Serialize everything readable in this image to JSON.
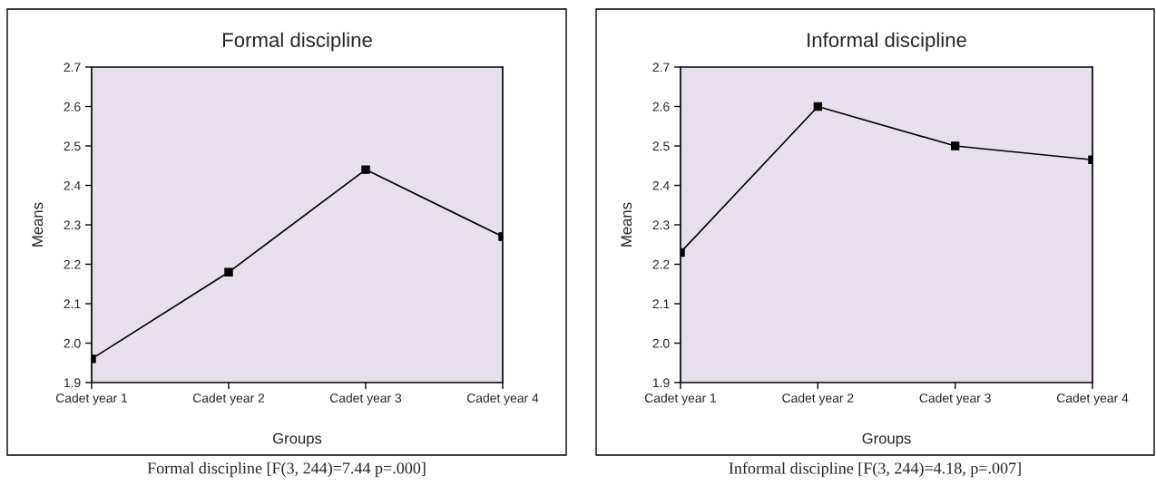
{
  "chart_data": [
    {
      "type": "line",
      "title": "Formal discipline",
      "xlabel": "Groups",
      "ylabel": "Means",
      "categories": [
        "Cadet year 1",
        "Cadet year 2",
        "Cadet year 3",
        "Cadet year 4"
      ],
      "series": [
        {
          "color": "#000000",
          "values": [
            1.96,
            2.18,
            2.44,
            2.27
          ]
        }
      ],
      "ylim": [
        1.9,
        2.7
      ],
      "yticks": [
        1.9,
        {
          "value": 2.0,
          "label": "2.0"
        },
        2.1,
        2.2,
        2.3,
        2.4,
        2.5,
        2.6,
        2.7
      ],
      "marker": "square",
      "line_style": "solid",
      "annotations": [
        "Formal discipline [F(3, 244)=7.44 p=.000]"
      ]
    },
    {
      "type": "line",
      "title": "Informal discipline",
      "xlabel": "Groups",
      "ylabel": "Means",
      "categories": [
        "Cadet year 1",
        "Cadet year 2",
        "Cadet year 3",
        "Cadet year 4"
      ],
      "series": [
        {
          "color": "#000000",
          "values": [
            2.23,
            2.6,
            2.5,
            2.465
          ]
        }
      ],
      "ylim": [
        1.9,
        2.7
      ],
      "yticks": [
        1.9,
        {
          "value": 2.0,
          "label": "2.0"
        },
        2.1,
        2.2,
        2.3,
        2.4,
        2.5,
        2.6,
        2.7
      ],
      "marker": "square",
      "line_style": "solid",
      "annotations": [
        "Informal discipline [F(3, 244)=4.18, p=.007]"
      ]
    }
  ]
}
